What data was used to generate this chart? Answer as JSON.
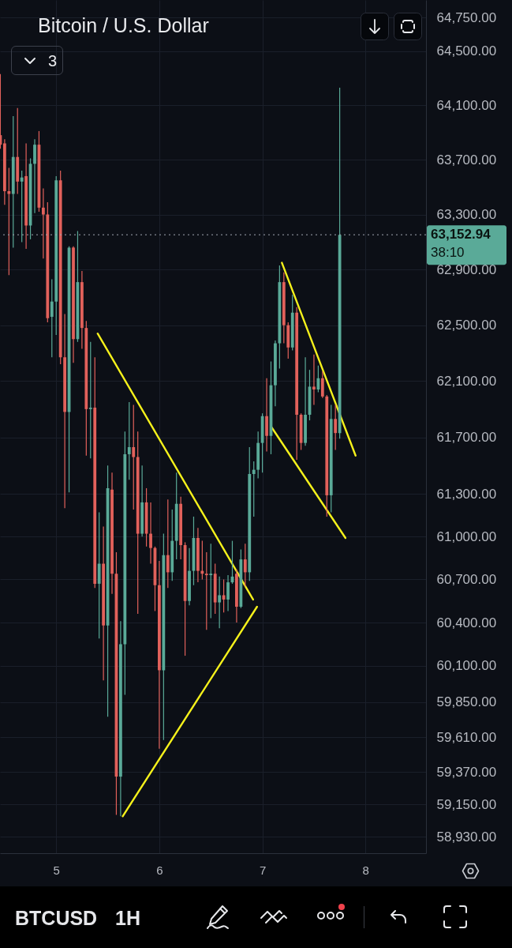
{
  "chart_data": {
    "type": "candlestick",
    "title": "Bitcoin / U.S. Dollar",
    "x": [
      4.4583,
      4.5,
      4.5417,
      4.5833,
      4.625,
      4.6667,
      4.7083,
      4.75,
      4.7917,
      4.8333,
      4.875,
      4.9167,
      4.9583,
      5,
      5.0417,
      5.0833,
      5.125,
      5.1667,
      5.2083,
      5.25,
      5.2917,
      5.3333,
      5.375,
      5.4167,
      5.4583,
      5.5,
      5.5417,
      5.5833,
      5.625,
      5.6667,
      5.7083,
      5.75,
      5.7917,
      5.8333,
      5.875,
      5.9167,
      5.9583,
      6,
      6.0417,
      6.0833,
      6.125,
      6.1667,
      6.2083,
      6.25,
      6.2917,
      6.3333,
      6.375,
      6.4167,
      6.4583,
      6.5,
      6.5417,
      6.5833,
      6.625,
      6.6667,
      6.7083,
      6.75,
      6.7917,
      6.8333,
      6.875,
      6.9167,
      6.9583,
      7,
      7.0417,
      7.0833,
      7.125,
      7.1667,
      7.2083,
      7.25,
      7.2917,
      7.3333,
      7.375,
      7.4167,
      7.4583,
      7.5,
      7.5417,
      7.5833,
      7.625,
      7.6667,
      7.7083,
      7.75
    ],
    "ohlc": [
      [
        63880,
        64330,
        63780,
        63810
      ],
      [
        63820,
        63850,
        63370,
        63470
      ],
      [
        63470,
        63640,
        62860,
        63450
      ],
      [
        63450,
        64020,
        63060,
        63720
      ],
      [
        63720,
        64080,
        63450,
        63540
      ],
      [
        63540,
        63620,
        63100,
        63570
      ],
      [
        63580,
        63820,
        63050,
        63220
      ],
      [
        63220,
        63710,
        63120,
        63670
      ],
      [
        63670,
        63850,
        63310,
        63810
      ],
      [
        63810,
        63910,
        63320,
        63350
      ],
      [
        63350,
        63490,
        62980,
        63300
      ],
      [
        63300,
        63390,
        62520,
        62550
      ],
      [
        62560,
        62830,
        62270,
        62670
      ],
      [
        62670,
        63580,
        62430,
        63550
      ],
      [
        63550,
        63620,
        62220,
        62270
      ],
      [
        62270,
        62580,
        61200,
        61880
      ],
      [
        61880,
        63070,
        61310,
        63060
      ],
      [
        63060,
        63070,
        62230,
        62400
      ],
      [
        62400,
        63180,
        62380,
        62810
      ],
      [
        62810,
        62890,
        62330,
        62480
      ],
      [
        62480,
        62530,
        61570,
        61900
      ],
      [
        61900,
        62380,
        61550,
        61910
      ],
      [
        61910,
        62270,
        60640,
        60670
      ],
      [
        60670,
        61170,
        60290,
        60810
      ],
      [
        60810,
        61070,
        60000,
        60380
      ],
      [
        60380,
        61500,
        59750,
        61340
      ],
      [
        61330,
        61450,
        60600,
        60740
      ],
      [
        60740,
        60890,
        59080,
        59340
      ],
      [
        59340,
        60410,
        59070,
        60250
      ],
      [
        60250,
        61740,
        59900,
        61580
      ],
      [
        61580,
        61950,
        61400,
        61630
      ],
      [
        61630,
        61930,
        61190,
        61560
      ],
      [
        61560,
        61740,
        60460,
        61020
      ],
      [
        61020,
        61500,
        61000,
        61240
      ],
      [
        61240,
        61340,
        60930,
        61020
      ],
      [
        61020,
        61240,
        60810,
        60920
      ],
      [
        60920,
        60930,
        60480,
        60660
      ],
      [
        60660,
        60830,
        59530,
        60070
      ],
      [
        60070,
        61020,
        59590,
        60870
      ],
      [
        60870,
        61260,
        60640,
        60750
      ],
      [
        60750,
        61190,
        60690,
        60970
      ],
      [
        60970,
        61450,
        60840,
        61230
      ],
      [
        61230,
        61280,
        60840,
        60940
      ],
      [
        60940,
        60960,
        60170,
        60550
      ],
      [
        60550,
        60920,
        60520,
        60760
      ],
      [
        60760,
        61140,
        60660,
        60990
      ],
      [
        60990,
        61060,
        60680,
        60760
      ],
      [
        60760,
        60970,
        60700,
        60740
      ],
      [
        60740,
        60890,
        60350,
        60730
      ],
      [
        60730,
        60950,
        60430,
        60740
      ],
      [
        60740,
        60810,
        60460,
        60540
      ],
      [
        60540,
        60720,
        60360,
        60590
      ],
      [
        60590,
        60700,
        60470,
        60560
      ],
      [
        60560,
        60730,
        60480,
        60680
      ],
      [
        60680,
        60970,
        60670,
        60720
      ],
      [
        60740,
        60770,
        60400,
        60510
      ],
      [
        60510,
        60910,
        60500,
        60840
      ],
      [
        60840,
        60950,
        60650,
        60750
      ],
      [
        60750,
        61630,
        60690,
        61440
      ],
      [
        61440,
        61530,
        61140,
        61470
      ],
      [
        61470,
        61740,
        61410,
        61660
      ],
      [
        61660,
        61870,
        61450,
        61850
      ],
      [
        61850,
        62120,
        61600,
        61710
      ],
      [
        61710,
        62240,
        61580,
        62070
      ],
      [
        62070,
        62390,
        61920,
        62370
      ],
      [
        62370,
        62930,
        62190,
        62810
      ],
      [
        62810,
        62880,
        62370,
        62500
      ],
      [
        62500,
        62520,
        62260,
        62340
      ],
      [
        62340,
        62720,
        62320,
        62590
      ],
      [
        62590,
        62630,
        61540,
        61860
      ],
      [
        61860,
        61870,
        61610,
        61660
      ],
      [
        61660,
        62270,
        61640,
        61860
      ],
      [
        61860,
        62180,
        61820,
        62060
      ],
      [
        62060,
        62290,
        61930,
        62040
      ],
      [
        62040,
        62210,
        62020,
        62120
      ],
      [
        62120,
        62170,
        61980,
        61990
      ],
      [
        61990,
        62000,
        61140,
        61290
      ],
      [
        61290,
        61930,
        61170,
        61830
      ],
      [
        61830,
        61930,
        61610,
        61730
      ],
      [
        61730,
        64230,
        61690,
        63152.94
      ]
    ],
    "colors": [
      "#e2615b",
      "#e2615b",
      "#e2615b",
      "#5aaa98",
      "#e2615b",
      "#5aaa98",
      "#e2615b",
      "#5aaa98",
      "#5aaa98",
      "#e2615b",
      "#e2615b",
      "#e2615b",
      "#5aaa98",
      "#5aaa98",
      "#e2615b",
      "#e2615b",
      "#5aaa98",
      "#e2615b",
      "#5aaa98",
      "#e2615b",
      "#e2615b",
      "#5aaa98",
      "#e2615b",
      "#5aaa98",
      "#e2615b",
      "#5aaa98",
      "#e2615b",
      "#e2615b",
      "#5aaa98",
      "#5aaa98",
      "#5aaa98",
      "#e2615b",
      "#e2615b",
      "#5aaa98",
      "#e2615b",
      "#e2615b",
      "#e2615b",
      "#e2615b",
      "#5aaa98",
      "#e2615b",
      "#5aaa98",
      "#5aaa98",
      "#e2615b",
      "#e2615b",
      "#5aaa98",
      "#5aaa98",
      "#e2615b",
      "#e2615b",
      "#e2615b",
      "#5aaa98",
      "#e2615b",
      "#5aaa98",
      "#e2615b",
      "#5aaa98",
      "#5aaa98",
      "#e2615b",
      "#5aaa98",
      "#e2615b",
      "#5aaa98",
      "#5aaa98",
      "#5aaa98",
      "#5aaa98",
      "#e2615b",
      "#5aaa98",
      "#5aaa98",
      "#5aaa98",
      "#e2615b",
      "#e2615b",
      "#5aaa98",
      "#e2615b",
      "#e2615b",
      "#5aaa98",
      "#5aaa98",
      "#e2615b",
      "#5aaa98",
      "#e2615b",
      "#e2615b",
      "#5aaa98",
      "#e2615b",
      "#5aaa98"
    ],
    "series": [
      {
        "type": "line",
        "color": "#f5f11b",
        "x": [
          5.402,
          6.91
        ],
        "values": [
          62440,
          60560
        ]
      },
      {
        "type": "line",
        "color": "#f5f11b",
        "x": [
          5.645,
          6.948
        ],
        "values": [
          59070,
          60510
        ]
      },
      {
        "type": "line",
        "color": "#f5f11b",
        "x": [
          7.189,
          7.904
        ],
        "values": [
          62950,
          61570
        ]
      },
      {
        "type": "line",
        "color": "#f5f11b",
        "x": [
          7.09,
          7.806
        ],
        "values": [
          61770,
          60990
        ]
      }
    ],
    "ref_lines": [
      {
        "axis": "y",
        "value": 63152.94,
        "label": "63,152.94",
        "line_style": "dotted"
      }
    ],
    "annotations": [
      "38:10",
      "3",
      "BTCUSD",
      "1H"
    ],
    "xlim": [
      4.455,
      8.587
    ],
    "xticks": [
      5,
      6,
      7,
      8
    ],
    "ylim": [
      58820,
      64880
    ],
    "yticks": [
      {
        "value": 64750,
        "label": "64,750.00"
      },
      {
        "value": 64500,
        "label": "64,500.00"
      },
      {
        "value": 64100,
        "label": "64,100.00"
      },
      {
        "value": 63700,
        "label": "63,700.00"
      },
      {
        "value": 63300,
        "label": "63,300.00"
      },
      {
        "value": 62900,
        "label": "62,900.00"
      },
      {
        "value": 62500,
        "label": "62,500.00"
      },
      {
        "value": 62100,
        "label": "62,100.00"
      },
      {
        "value": 61700,
        "label": "61,700.00"
      },
      {
        "value": 61300,
        "label": "61,300.00"
      },
      {
        "value": 61000,
        "label": "61,000.00"
      },
      {
        "value": 60700,
        "label": "60,700.00"
      },
      {
        "value": 60400,
        "label": "60,400.00"
      },
      {
        "value": 60100,
        "label": "60,100.00"
      },
      {
        "value": 59850,
        "label": "59,850.00"
      },
      {
        "value": 59610,
        "label": "59,610.00"
      },
      {
        "value": 59370,
        "label": "59,370.00"
      },
      {
        "value": 59150,
        "label": "59,150.00"
      },
      {
        "value": 58930,
        "label": "58,930.00"
      }
    ],
    "log": true,
    "grid": true
  }
}
